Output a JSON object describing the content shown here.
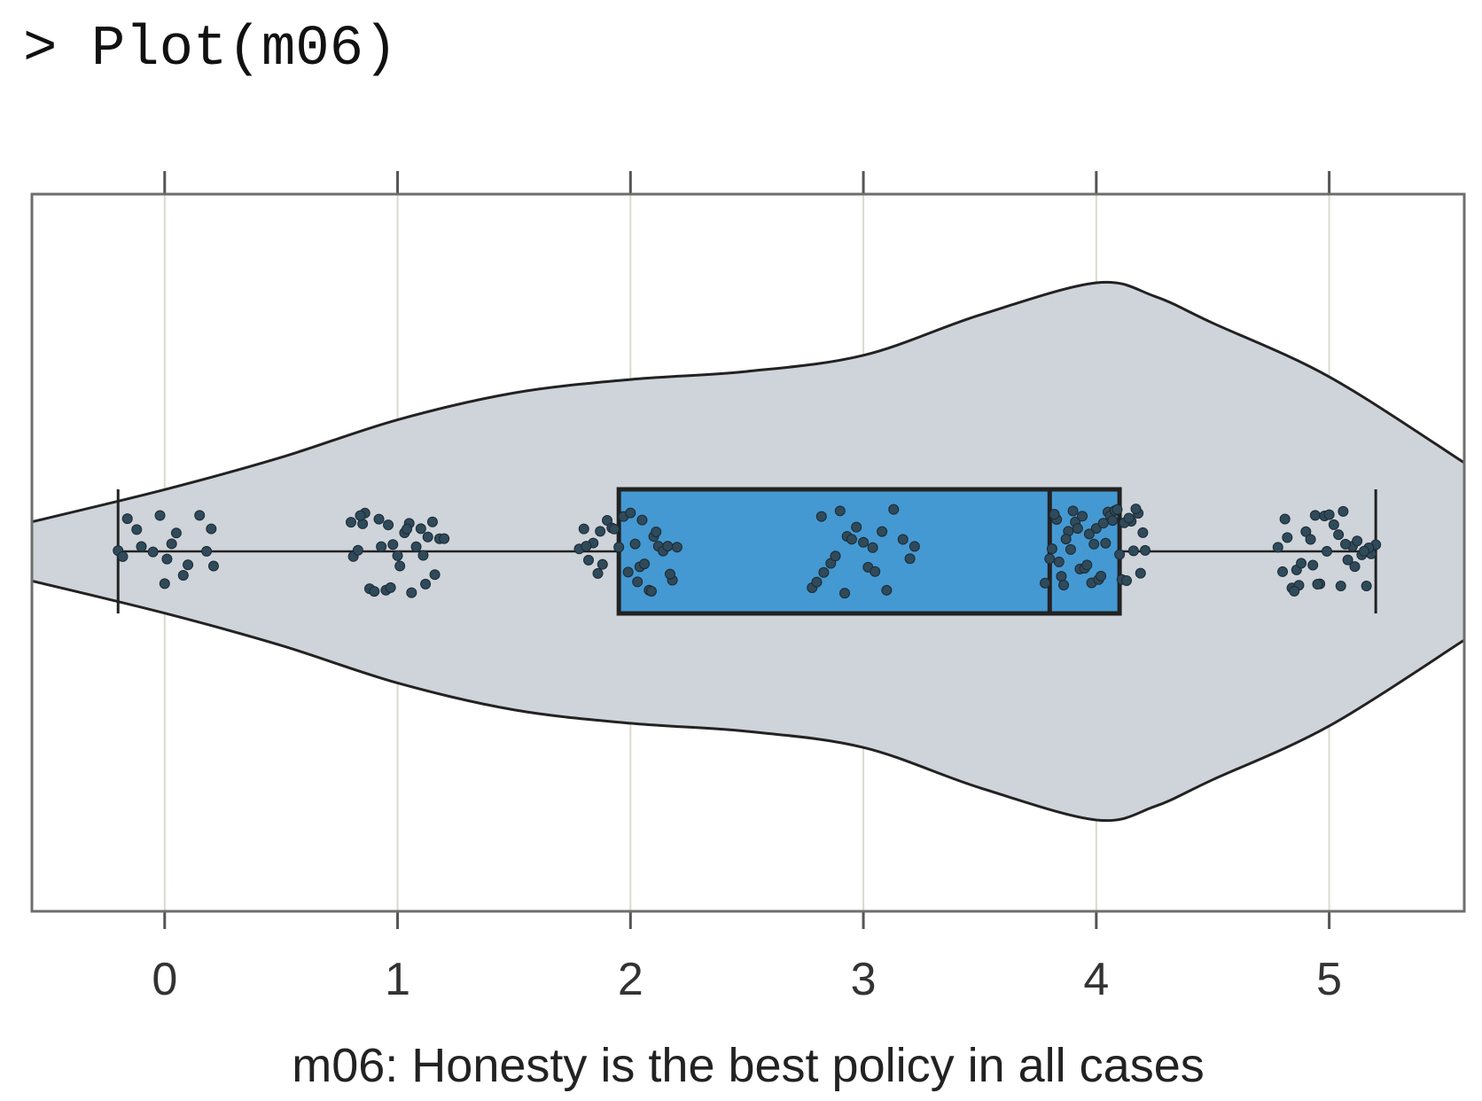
{
  "console": {
    "command": "> Plot(m06)"
  },
  "chart_data": {
    "type": "violin",
    "xlabel": "m06: Honesty is the best policy in all cases",
    "xlim": [
      -0.57,
      5.58
    ],
    "xticks": [
      0,
      1,
      2,
      3,
      4,
      5
    ],
    "grid": true,
    "violin": {
      "color": "#cfd4da",
      "x": [
        -0.57,
        0,
        0.5,
        1,
        1.5,
        2,
        2.5,
        3,
        3.5,
        4,
        4.25,
        4.5,
        5,
        5.58
      ],
      "density": [
        0.11,
        0.23,
        0.35,
        0.49,
        0.59,
        0.64,
        0.67,
        0.73,
        0.88,
        1.0,
        0.95,
        0.85,
        0.65,
        0.33
      ]
    },
    "box": {
      "color": "#4499d3",
      "whisker_low": -0.2,
      "q1": 1.95,
      "median": 3.8,
      "q3": 4.1,
      "whisker_high": 5.2
    },
    "points": {
      "color": "#2f4a5a",
      "values": [
        -0.2,
        -0.18,
        -0.16,
        -0.12,
        -0.1,
        -0.05,
        -0.02,
        0.0,
        0.01,
        0.03,
        0.05,
        0.08,
        0.1,
        0.15,
        0.18,
        0.2,
        0.21,
        0.8,
        0.81,
        0.83,
        0.85,
        0.86,
        0.88,
        0.9,
        0.92,
        0.93,
        0.95,
        0.96,
        0.98,
        1.0,
        1.01,
        1.03,
        1.05,
        1.06,
        1.08,
        1.1,
        1.11,
        1.13,
        1.15,
        1.16,
        1.18,
        1.2,
        0.84,
        0.97,
        1.04,
        1.12,
        1.78,
        1.8,
        1.82,
        1.84,
        1.86,
        1.88,
        1.9,
        1.92,
        1.95,
        1.97,
        2.0,
        2.02,
        2.04,
        2.06,
        2.08,
        2.1,
        2.12,
        2.14,
        2.16,
        2.18,
        2.2,
        1.81,
        1.87,
        1.93,
        1.99,
        2.05,
        2.11,
        2.17,
        2.03,
        2.09,
        2.78,
        2.8,
        2.83,
        2.86,
        2.88,
        2.9,
        2.93,
        2.95,
        2.97,
        3.0,
        3.02,
        3.05,
        3.08,
        3.1,
        3.13,
        3.17,
        3.2,
        3.22,
        2.82,
        2.92,
        3.04,
        3.78,
        3.8,
        3.81,
        3.83,
        3.85,
        3.86,
        3.88,
        3.9,
        3.91,
        3.93,
        3.95,
        3.96,
        3.98,
        4.0,
        4.01,
        4.03,
        4.05,
        4.06,
        4.08,
        4.1,
        4.11,
        4.13,
        4.15,
        4.16,
        4.18,
        4.2,
        4.21,
        3.82,
        3.87,
        3.92,
        3.97,
        4.02,
        4.07,
        4.12,
        4.17,
        3.84,
        3.94,
        4.04,
        4.14,
        3.89,
        3.99,
        4.09,
        4.19,
        4.78,
        4.8,
        4.82,
        4.84,
        4.86,
        4.88,
        4.9,
        4.92,
        4.94,
        4.96,
        4.98,
        5.0,
        5.02,
        5.04,
        5.06,
        5.08,
        5.1,
        5.12,
        5.14,
        5.16,
        5.18,
        5.2,
        4.81,
        4.87,
        4.93,
        4.99,
        5.05,
        5.11,
        5.17,
        4.85,
        4.95,
        5.07,
        5.15
      ]
    }
  }
}
